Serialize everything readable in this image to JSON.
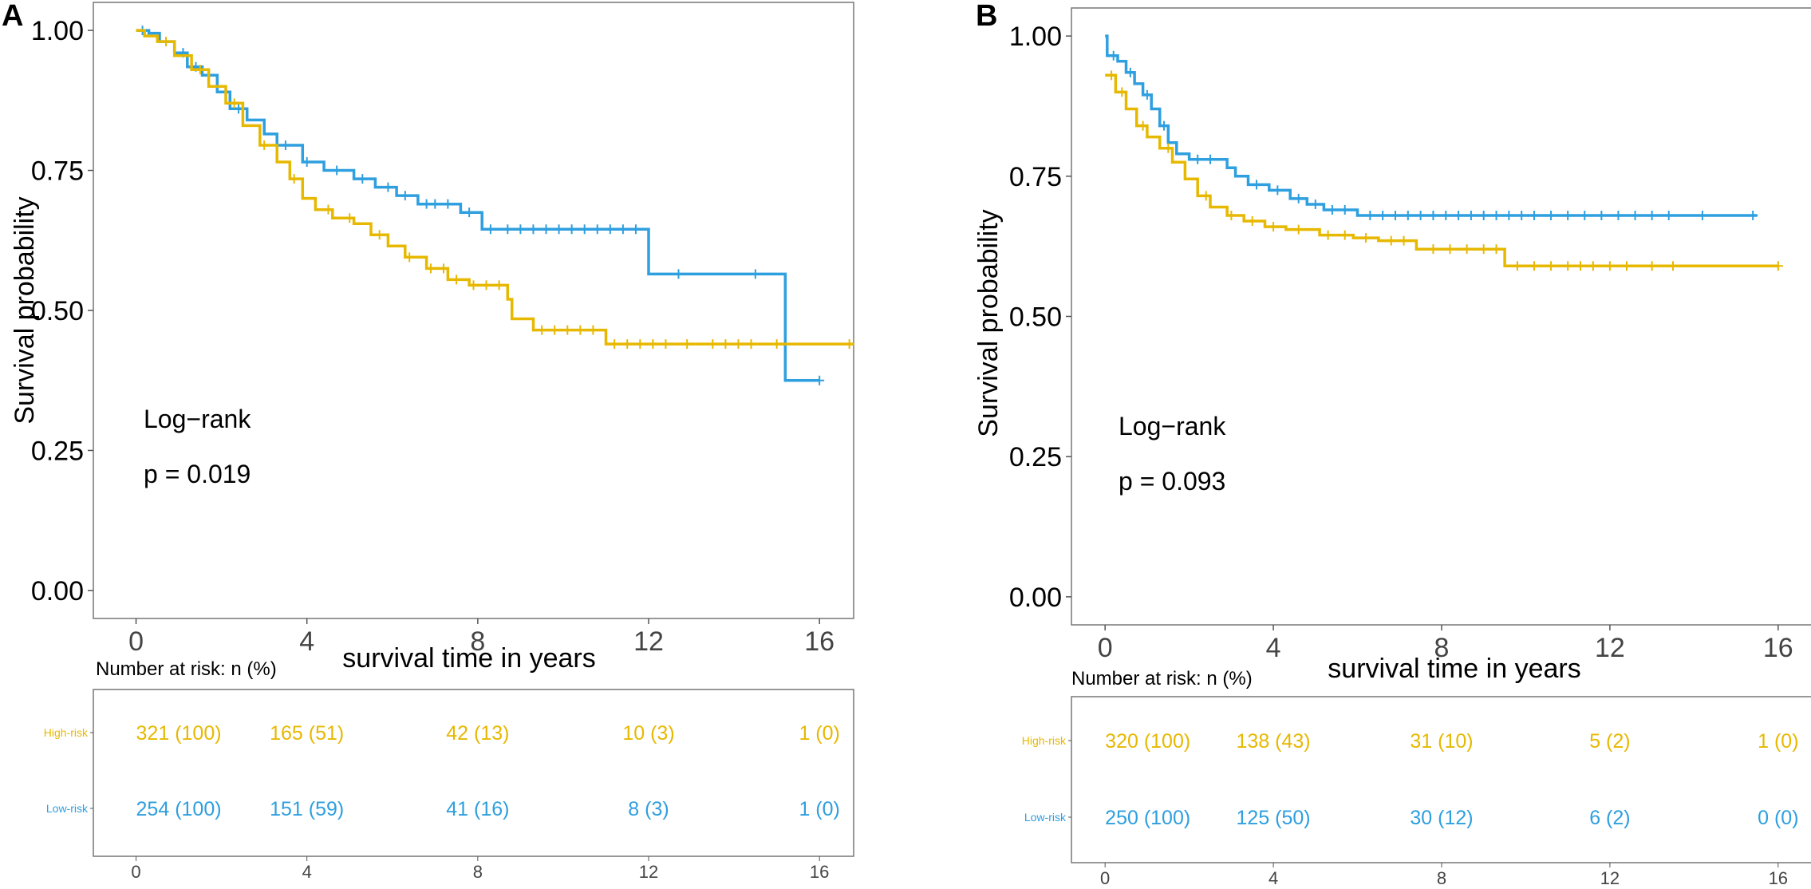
{
  "colors": {
    "high": "#E7B800",
    "low": "#2E9FDF",
    "frame": "#777777",
    "text": "#000000"
  },
  "chart_data": [
    {
      "type": "line",
      "panel_label": "A",
      "xlabel": "survival time in years",
      "ylabel": "Survival probability",
      "xlim": [
        -1,
        16.8
      ],
      "ylim": [
        -0.05,
        1.05
      ],
      "x_ticks": [
        0,
        4,
        8,
        12,
        16
      ],
      "x_tick_labels": [
        "0",
        "4",
        "8",
        "12",
        "16"
      ],
      "y_ticks": [
        0,
        0.25,
        0.5,
        0.75,
        1.0
      ],
      "y_tick_labels": [
        "0.00",
        "0.25",
        "0.50",
        "0.75",
        "1.00"
      ],
      "annotation": {
        "test": "Log−rank",
        "pvalue": "p = 0.019"
      },
      "series": [
        {
          "name": "Low-risk",
          "color_key": "low",
          "steps": [
            [
              0,
              1.0
            ],
            [
              0.3,
              0.995
            ],
            [
              0.55,
              0.98
            ],
            [
              0.9,
              0.96
            ],
            [
              1.2,
              0.935
            ],
            [
              1.55,
              0.92
            ],
            [
              1.9,
              0.89
            ],
            [
              2.2,
              0.86
            ],
            [
              2.6,
              0.84
            ],
            [
              3.0,
              0.815
            ],
            [
              3.3,
              0.795
            ],
            [
              3.9,
              0.765
            ],
            [
              4.4,
              0.75
            ],
            [
              5.1,
              0.735
            ],
            [
              5.6,
              0.72
            ],
            [
              6.1,
              0.705
            ],
            [
              6.6,
              0.69
            ],
            [
              7.6,
              0.675
            ],
            [
              8.1,
              0.645
            ],
            [
              12.0,
              0.565
            ],
            [
              15.2,
              0.375
            ],
            [
              16.0,
              0.375
            ]
          ],
          "censor": [
            0.15,
            1.1,
            1.4,
            1.7,
            2.4,
            3.5,
            4.0,
            4.7,
            5.3,
            5.9,
            6.3,
            6.8,
            7.0,
            7.3,
            7.8,
            8.3,
            8.7,
            9.0,
            9.3,
            9.6,
            9.9,
            10.2,
            10.5,
            10.8,
            11.1,
            11.4,
            11.7,
            12.7,
            14.5,
            16.0
          ]
        },
        {
          "name": "High-risk",
          "color_key": "high",
          "steps": [
            [
              0,
              1.0
            ],
            [
              0.2,
              0.99
            ],
            [
              0.5,
              0.98
            ],
            [
              0.9,
              0.955
            ],
            [
              1.3,
              0.93
            ],
            [
              1.7,
              0.9
            ],
            [
              2.1,
              0.87
            ],
            [
              2.5,
              0.83
            ],
            [
              2.9,
              0.795
            ],
            [
              3.3,
              0.765
            ],
            [
              3.6,
              0.735
            ],
            [
              3.9,
              0.7
            ],
            [
              4.2,
              0.68
            ],
            [
              4.6,
              0.665
            ],
            [
              5.1,
              0.655
            ],
            [
              5.5,
              0.635
            ],
            [
              5.9,
              0.615
            ],
            [
              6.3,
              0.595
            ],
            [
              6.8,
              0.575
            ],
            [
              7.3,
              0.555
            ],
            [
              7.8,
              0.545
            ],
            [
              8.7,
              0.52
            ],
            [
              8.8,
              0.485
            ],
            [
              9.3,
              0.465
            ],
            [
              11.0,
              0.44
            ],
            [
              16.8,
              0.44
            ]
          ],
          "censor": [
            0.7,
            1.5,
            2.3,
            3.0,
            3.7,
            4.5,
            5.0,
            5.7,
            6.4,
            6.9,
            7.2,
            7.5,
            7.9,
            8.2,
            8.5,
            9.5,
            9.8,
            10.1,
            10.4,
            10.7,
            11.2,
            11.5,
            11.8,
            12.1,
            12.4,
            12.9,
            13.5,
            13.8,
            14.1,
            14.4,
            15.0,
            16.7
          ]
        }
      ],
      "risk_table": {
        "title": "Number at risk: n (%)",
        "x_ticks": [
          0,
          4,
          8,
          12,
          16
        ],
        "x_tick_labels": [
          "0",
          "4",
          "8",
          "12",
          "16"
        ],
        "rows": [
          {
            "label": "High-risk",
            "color_key": "high",
            "values": [
              "321 (100)",
              "165 (51)",
              "42 (13)",
              "10 (3)",
              "1 (0)"
            ]
          },
          {
            "label": "Low-risk",
            "color_key": "low",
            "values": [
              "254 (100)",
              "151 (59)",
              "41 (16)",
              "8 (3)",
              "1 (0)"
            ]
          }
        ]
      }
    },
    {
      "type": "line",
      "panel_label": "B",
      "xlabel": "survival time in years",
      "ylabel": "Survival probability",
      "xlim": [
        -0.8,
        16.8
      ],
      "ylim": [
        -0.05,
        1.05
      ],
      "x_ticks": [
        0,
        4,
        8,
        12,
        16
      ],
      "x_tick_labels": [
        "0",
        "4",
        "8",
        "12",
        "16"
      ],
      "y_ticks": [
        0,
        0.25,
        0.5,
        0.75,
        1.0
      ],
      "y_tick_labels": [
        "0.00",
        "0.25",
        "0.50",
        "0.75",
        "1.00"
      ],
      "annotation": {
        "test": "Log−rank",
        "pvalue": "p = 0.093"
      },
      "series": [
        {
          "name": "Low-risk",
          "color_key": "low",
          "steps": [
            [
              0,
              1.0
            ],
            [
              0.05,
              0.965
            ],
            [
              0.3,
              0.955
            ],
            [
              0.5,
              0.935
            ],
            [
              0.7,
              0.915
            ],
            [
              0.9,
              0.895
            ],
            [
              1.1,
              0.87
            ],
            [
              1.3,
              0.84
            ],
            [
              1.5,
              0.81
            ],
            [
              1.7,
              0.79
            ],
            [
              2.0,
              0.78
            ],
            [
              2.9,
              0.765
            ],
            [
              3.1,
              0.75
            ],
            [
              3.4,
              0.735
            ],
            [
              3.9,
              0.725
            ],
            [
              4.4,
              0.71
            ],
            [
              4.8,
              0.7
            ],
            [
              5.2,
              0.69
            ],
            [
              6.0,
              0.68
            ],
            [
              15.5,
              0.68
            ]
          ],
          "censor": [
            0.2,
            0.6,
            1.0,
            1.4,
            2.2,
            2.5,
            3.6,
            4.1,
            4.6,
            5.0,
            5.4,
            5.7,
            6.3,
            6.6,
            6.9,
            7.2,
            7.5,
            7.8,
            8.1,
            8.4,
            8.7,
            9.0,
            9.3,
            9.6,
            9.9,
            10.2,
            10.6,
            11.0,
            11.4,
            11.8,
            12.2,
            12.6,
            13.0,
            13.4,
            14.2,
            15.4
          ]
        },
        {
          "name": "High-risk",
          "color_key": "high",
          "steps": [
            [
              0,
              0.93
            ],
            [
              0.25,
              0.9
            ],
            [
              0.5,
              0.87
            ],
            [
              0.75,
              0.84
            ],
            [
              1.0,
              0.82
            ],
            [
              1.3,
              0.8
            ],
            [
              1.6,
              0.775
            ],
            [
              1.9,
              0.745
            ],
            [
              2.2,
              0.715
            ],
            [
              2.5,
              0.695
            ],
            [
              2.9,
              0.68
            ],
            [
              3.3,
              0.67
            ],
            [
              3.8,
              0.66
            ],
            [
              4.3,
              0.655
            ],
            [
              5.1,
              0.645
            ],
            [
              5.9,
              0.64
            ],
            [
              6.5,
              0.635
            ],
            [
              7.4,
              0.62
            ],
            [
              9.5,
              0.59
            ],
            [
              16.0,
              0.59
            ]
          ],
          "censor": [
            0.15,
            0.4,
            0.9,
            1.5,
            2.4,
            3.0,
            3.5,
            4.0,
            4.6,
            5.3,
            5.7,
            6.2,
            6.8,
            7.1,
            7.8,
            8.2,
            8.6,
            9.0,
            9.3,
            9.8,
            10.2,
            10.6,
            11.0,
            11.3,
            11.6,
            12.0,
            12.4,
            13.0,
            13.5,
            16.0
          ]
        }
      ],
      "risk_table": {
        "title": "Number at risk: n (%)",
        "x_ticks": [
          0,
          4,
          8,
          12,
          16
        ],
        "x_tick_labels": [
          "0",
          "4",
          "8",
          "12",
          "16"
        ],
        "rows": [
          {
            "label": "High-risk",
            "color_key": "high",
            "values": [
              "320 (100)",
              "138 (43)",
              "31 (10)",
              "5 (2)",
              "1 (0)"
            ]
          },
          {
            "label": "Low-risk",
            "color_key": "low",
            "values": [
              "250 (100)",
              "125 (50)",
              "30 (12)",
              "6 (2)",
              "0 (0)"
            ]
          }
        ]
      }
    }
  ]
}
